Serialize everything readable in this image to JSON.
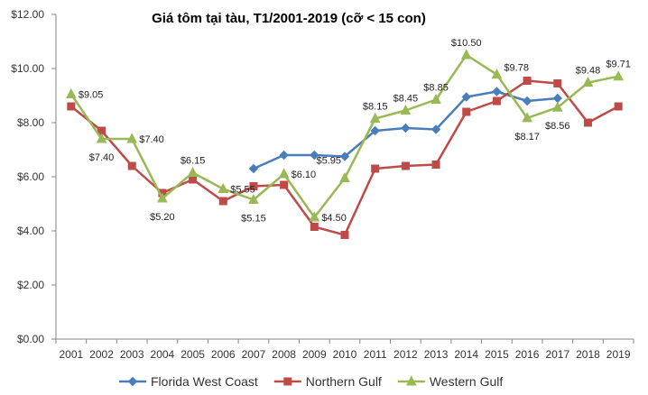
{
  "chart_data": {
    "type": "line",
    "title": "Giá tôm tại tàu, T1/2001-2019 (cỡ < 15 con)",
    "xlabel": "",
    "ylabel": "",
    "ylim": [
      0,
      12
    ],
    "yticks": [
      "$0.00",
      "$2.00",
      "$4.00",
      "$6.00",
      "$8.00",
      "$10.00",
      "$12.00"
    ],
    "ytick_values": [
      0,
      2,
      4,
      6,
      8,
      10,
      12
    ],
    "categories": [
      "2001",
      "2002",
      "2003",
      "2004",
      "2005",
      "2006",
      "2007",
      "2008",
      "2009",
      "2010",
      "2011",
      "2012",
      "2013",
      "2014",
      "2015",
      "2016",
      "2017",
      "2018",
      "2019"
    ],
    "grid": false,
    "legend_position": "bottom",
    "series": [
      {
        "name": "Florida West Coast",
        "color": "#4a7ebb",
        "marker": "diamond",
        "values": [
          null,
          null,
          null,
          null,
          null,
          null,
          6.3,
          6.8,
          6.8,
          6.75,
          7.7,
          7.8,
          7.75,
          8.95,
          9.15,
          8.8,
          8.9,
          null,
          null
        ]
      },
      {
        "name": "Northern Gulf",
        "color": "#be4b48",
        "marker": "square",
        "values": [
          8.6,
          7.7,
          6.4,
          5.4,
          5.9,
          5.1,
          5.65,
          5.7,
          4.15,
          3.85,
          6.3,
          6.4,
          6.45,
          8.4,
          8.8,
          9.55,
          9.45,
          8.0,
          8.6
        ]
      },
      {
        "name": "Western Gulf",
        "color": "#98b954",
        "marker": "triangle",
        "values": [
          9.05,
          7.4,
          7.4,
          5.2,
          6.15,
          5.55,
          5.15,
          6.1,
          4.5,
          5.95,
          8.15,
          8.45,
          8.85,
          10.5,
          9.78,
          8.17,
          8.56,
          9.48,
          9.71
        ]
      }
    ],
    "annotations": [
      {
        "text": "$9.05",
        "cat": 0,
        "value": 9.05,
        "pos": "right"
      },
      {
        "text": "$7.40",
        "cat": 1,
        "value": 7.4,
        "pos": "below"
      },
      {
        "text": "$7.40",
        "cat": 2,
        "value": 7.4,
        "pos": "right"
      },
      {
        "text": "$5.20",
        "cat": 3,
        "value": 5.2,
        "pos": "below"
      },
      {
        "text": "$6.15",
        "cat": 4,
        "value": 6.15,
        "pos": "above"
      },
      {
        "text": "$5.55",
        "cat": 5,
        "value": 5.55,
        "pos": "right"
      },
      {
        "text": "$5.15",
        "cat": 6,
        "value": 5.15,
        "pos": "below"
      },
      {
        "text": "$6.10",
        "cat": 7,
        "value": 6.1,
        "pos": "right"
      },
      {
        "text": "$4.50",
        "cat": 8,
        "value": 4.5,
        "pos": "right"
      },
      {
        "text": "$5.95",
        "cat": 9,
        "value": 5.95,
        "pos": "aboveleft"
      },
      {
        "text": "$8.15",
        "cat": 10,
        "value": 8.15,
        "pos": "above"
      },
      {
        "text": "$8.45",
        "cat": 11,
        "value": 8.45,
        "pos": "above"
      },
      {
        "text": "$8.85",
        "cat": 12,
        "value": 8.85,
        "pos": "above"
      },
      {
        "text": "$10.50",
        "cat": 13,
        "value": 10.5,
        "pos": "above"
      },
      {
        "text": "$9.78",
        "cat": 14,
        "value": 9.78,
        "pos": "aboveright"
      },
      {
        "text": "$8.17",
        "cat": 15,
        "value": 8.17,
        "pos": "below"
      },
      {
        "text": "$8.56",
        "cat": 16,
        "value": 8.56,
        "pos": "below"
      },
      {
        "text": "$9.48",
        "cat": 17,
        "value": 9.48,
        "pos": "above"
      },
      {
        "text": "$9.71",
        "cat": 18,
        "value": 9.71,
        "pos": "above"
      }
    ]
  }
}
